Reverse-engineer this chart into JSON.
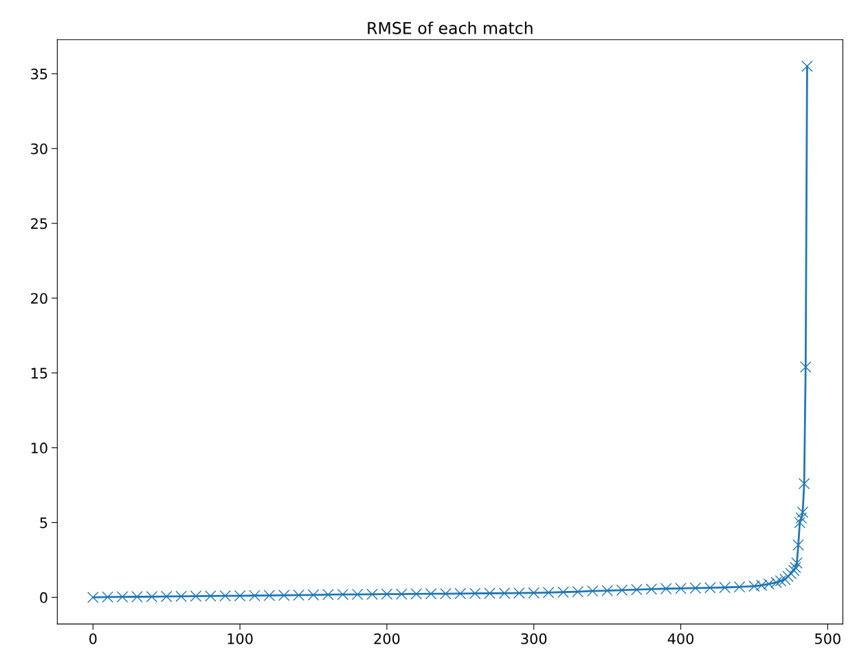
{
  "chart_data": {
    "type": "line",
    "title": "RMSE of each match",
    "marker": "cross",
    "grid": false,
    "legend": false,
    "xlim": [
      -24.3,
      510.3
    ],
    "ylim": [
      -1.78,
      37.28
    ],
    "xticks": [
      0,
      100,
      200,
      300,
      400,
      500
    ],
    "yticks": [
      0,
      5,
      10,
      15,
      20,
      25,
      30,
      35
    ],
    "series": [
      {
        "color": "#1f77b4",
        "x": [
          0,
          10,
          20,
          30,
          40,
          50,
          60,
          70,
          80,
          90,
          100,
          110,
          120,
          130,
          140,
          150,
          160,
          170,
          180,
          190,
          200,
          210,
          220,
          230,
          240,
          250,
          260,
          270,
          280,
          290,
          300,
          310,
          320,
          330,
          340,
          350,
          360,
          370,
          380,
          390,
          400,
          410,
          420,
          430,
          440,
          450,
          455,
          460,
          465,
          468,
          471,
          473,
          475,
          477,
          478,
          479,
          480,
          481,
          482,
          483,
          484,
          485,
          486
        ],
        "values": [
          0.0,
          0.02,
          0.03,
          0.04,
          0.05,
          0.06,
          0.07,
          0.08,
          0.09,
          0.1,
          0.1,
          0.12,
          0.13,
          0.14,
          0.15,
          0.16,
          0.18,
          0.2,
          0.2,
          0.21,
          0.22,
          0.22,
          0.23,
          0.24,
          0.24,
          0.25,
          0.26,
          0.27,
          0.28,
          0.29,
          0.3,
          0.32,
          0.35,
          0.38,
          0.42,
          0.45,
          0.48,
          0.52,
          0.55,
          0.58,
          0.6,
          0.62,
          0.64,
          0.66,
          0.7,
          0.75,
          0.8,
          0.9,
          1.0,
          1.1,
          1.2,
          1.4,
          1.6,
          1.8,
          2.0,
          2.3,
          3.5,
          5.0,
          5.3,
          5.7,
          7.6,
          15.4,
          35.5
        ]
      }
    ]
  }
}
